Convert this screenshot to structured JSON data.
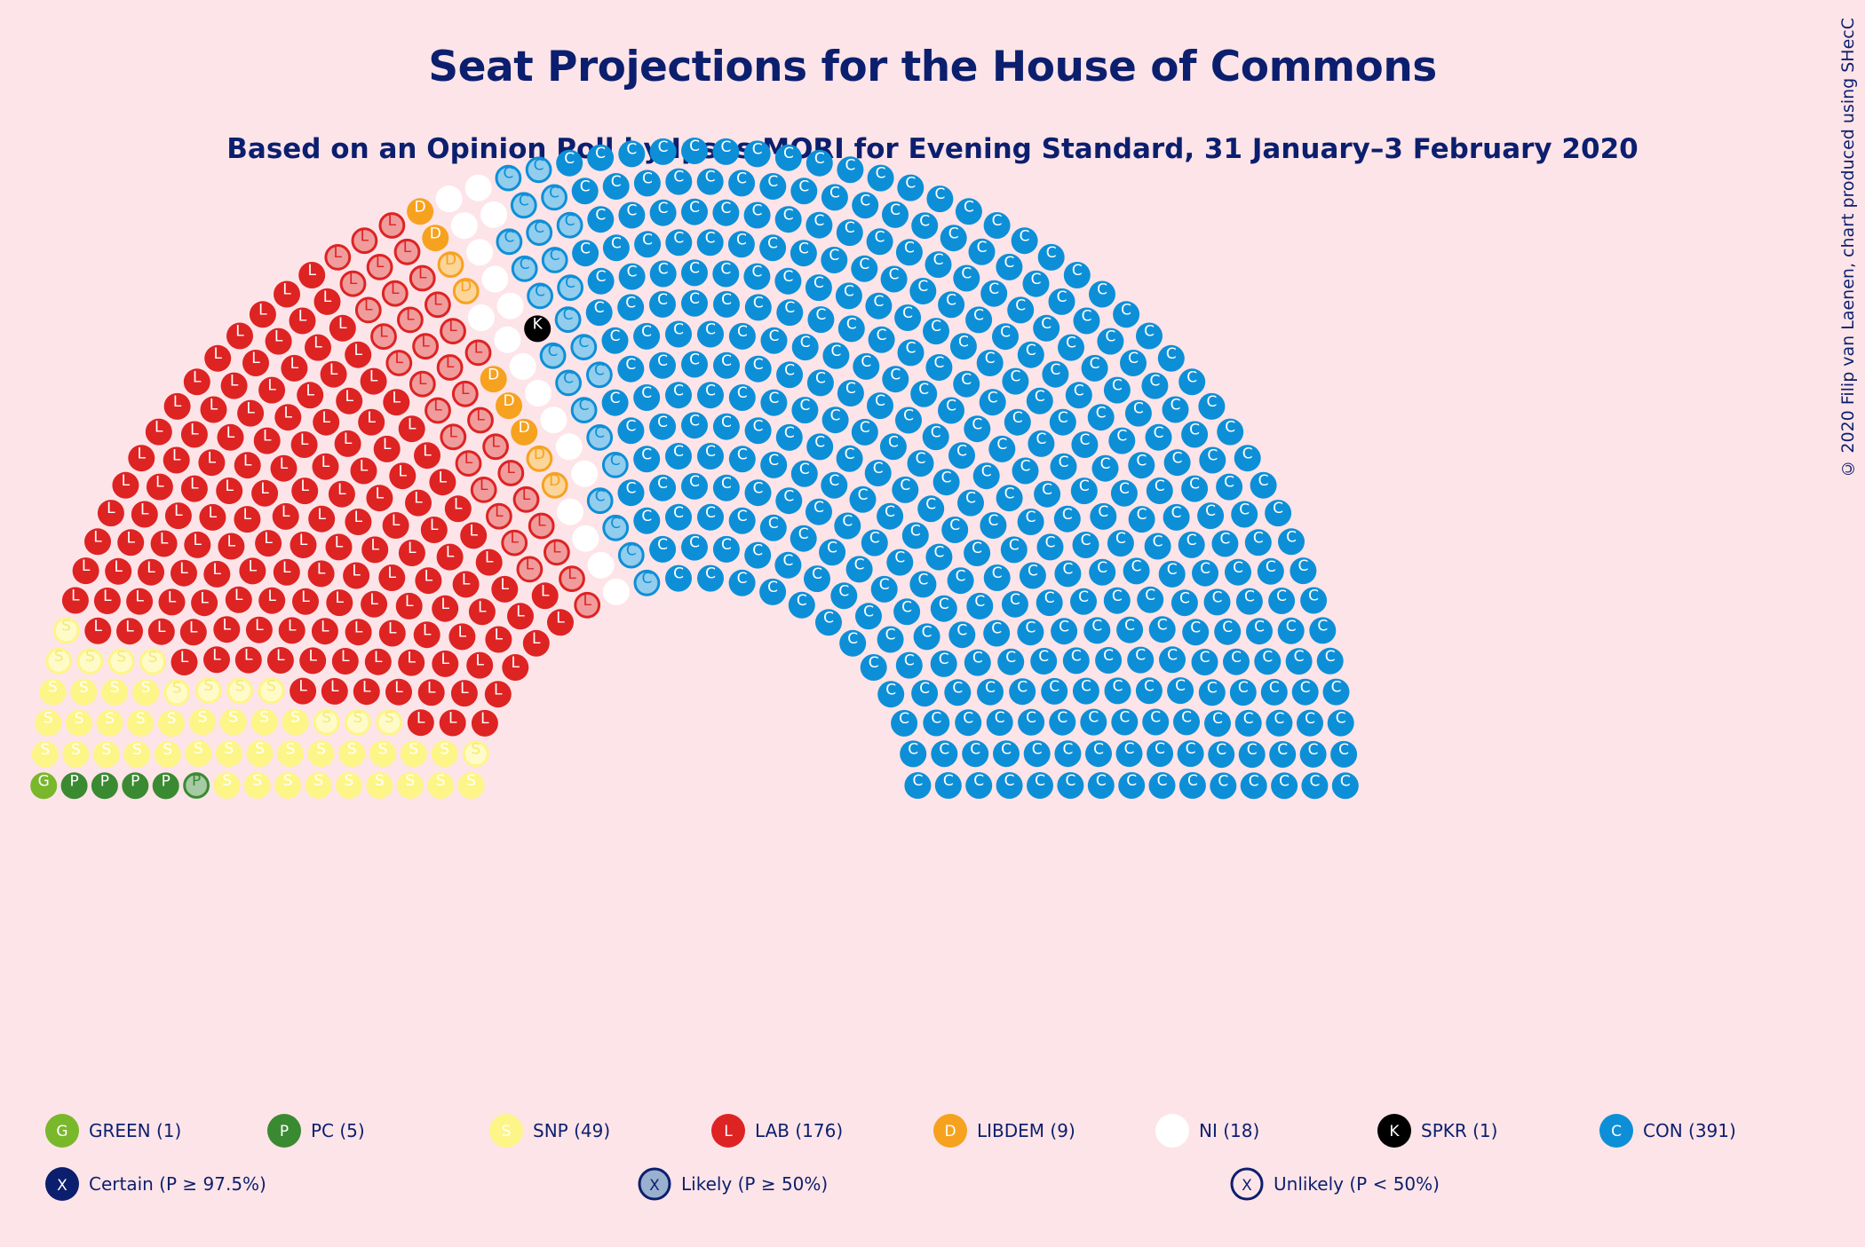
{
  "chart_data": {
    "type": "parliament",
    "title": "Seat Projections for the House of Commons",
    "subtitle": "Based on an Opinion Poll by Ipsos MORI for Evening Standard, 31 January–3 February 2020",
    "credit": "© 2020 Filip van Laenen, chart produced using SHecC",
    "total_seats": 650,
    "parties": [
      {
        "code": "GREEN",
        "letter": "G",
        "seats": 1,
        "certain": 1,
        "likely": 0,
        "color": "#78b82a"
      },
      {
        "code": "PC",
        "letter": "P",
        "seats": 5,
        "certain": 4,
        "likely": 1,
        "color": "#3a8a32"
      },
      {
        "code": "SNP",
        "letter": "S",
        "seats": 49,
        "certain": 36,
        "likely": 13,
        "color": "#fdf587"
      },
      {
        "code": "LAB",
        "letter": "L",
        "seats": 176,
        "certain": 142,
        "likely": 34,
        "color": "#de2323"
      },
      {
        "code": "LIBDEM",
        "letter": "D",
        "seats": 9,
        "certain": 5,
        "likely": 4,
        "color": "#f6a21f"
      },
      {
        "code": "NI",
        "letter": "",
        "seats": 18,
        "certain": 18,
        "likely": 0,
        "color": "#ffffff"
      },
      {
        "code": "SPKR",
        "letter": "K",
        "seats": 1,
        "certain": 1,
        "likely": 0,
        "color": "#000000"
      },
      {
        "code": "CON",
        "letter": "C",
        "seats": 391,
        "certain": 368,
        "likely": 23,
        "color": "#0d8fd8"
      }
    ],
    "legend": [
      {
        "letter": "G",
        "label": "GREEN (1)",
        "party": "GREEN"
      },
      {
        "letter": "P",
        "label": "PC (5)",
        "party": "PC"
      },
      {
        "letter": "S",
        "label": "SNP (49)",
        "party": "SNP"
      },
      {
        "letter": "L",
        "label": "LAB (176)",
        "party": "LAB"
      },
      {
        "letter": "D",
        "label": "LIBDEM (9)",
        "party": "LIBDEM"
      },
      {
        "letter": "",
        "label": "NI (18)",
        "party": "NI"
      },
      {
        "letter": "K",
        "label": "SPKR (1)",
        "party": "SPKR"
      },
      {
        "letter": "C",
        "label": "CON (391)",
        "party": "CON"
      }
    ],
    "certainty_legend": [
      {
        "letter": "X",
        "label": "Certain (P ≥ 97.5%)",
        "style": "certain"
      },
      {
        "letter": "X",
        "label": "Likely (P ≥ 50%)",
        "style": "likely"
      },
      {
        "letter": "X",
        "label": "Unlikely (P < 50%)",
        "style": "unlikely"
      }
    ],
    "colors": {
      "background": "#fde4e8",
      "text": "#0c1f6e"
    }
  }
}
